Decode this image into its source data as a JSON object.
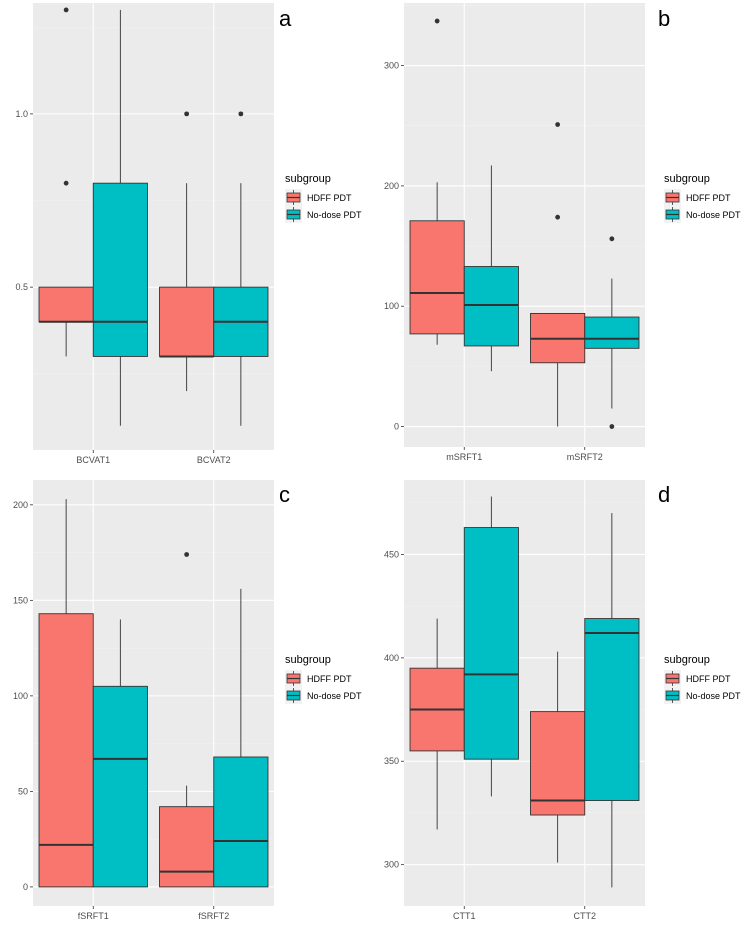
{
  "figure": {
    "description_free": true
  },
  "legend": {
    "title": "subgroup",
    "entries": [
      {
        "name": "HDFF PDT",
        "color": "#F8766D"
      },
      {
        "name": "No-dose PDT",
        "color": "#00BFC4"
      }
    ]
  },
  "chart_data": [
    {
      "type": "boxplot",
      "panel_letter": "a",
      "ylim": [
        0.03,
        1.32
      ],
      "yticks": [
        0.5,
        1.0
      ],
      "ytick_labels": [
        "0.5",
        "1.0"
      ],
      "categories": [
        "BCVAT1",
        "BCVAT2"
      ],
      "series": [
        {
          "name": "HDFF PDT",
          "boxes": [
            {
              "min": 0.3,
              "q1": 0.4,
              "median": 0.4,
              "q3": 0.5,
              "max": 0.5,
              "outliers": [
                0.8,
                1.3
              ]
            },
            {
              "min": 0.2,
              "q1": 0.3,
              "median": 0.3,
              "q3": 0.5,
              "max": 0.8,
              "outliers": [
                1.0
              ]
            }
          ]
        },
        {
          "name": "No-dose PDT",
          "boxes": [
            {
              "min": 0.1,
              "q1": 0.3,
              "median": 0.4,
              "q3": 0.8,
              "max": 1.3,
              "outliers": []
            },
            {
              "min": 0.1,
              "q1": 0.3,
              "median": 0.4,
              "q3": 0.5,
              "max": 0.8,
              "outliers": [
                1.0
              ]
            }
          ]
        }
      ]
    },
    {
      "type": "boxplot",
      "panel_letter": "b",
      "ylim": [
        -17,
        352
      ],
      "yticks": [
        0,
        100,
        200,
        300
      ],
      "ytick_labels": [
        "0",
        "100",
        "200",
        "300"
      ],
      "categories": [
        "mSRFT1",
        "mSRFT2"
      ],
      "series": [
        {
          "name": "HDFF PDT",
          "boxes": [
            {
              "min": 68,
              "q1": 77,
              "median": 111,
              "q3": 171,
              "max": 203,
              "outliers": [
                337
              ]
            },
            {
              "min": 0,
              "q1": 53,
              "median": 73,
              "q3": 94,
              "max": 94,
              "outliers": [
                174,
                251
              ]
            }
          ]
        },
        {
          "name": "No-dose PDT",
          "boxes": [
            {
              "min": 46,
              "q1": 67,
              "median": 101,
              "q3": 133,
              "max": 217,
              "outliers": []
            },
            {
              "min": 15,
              "q1": 65,
              "median": 73,
              "q3": 91,
              "max": 123,
              "outliers": [
                156,
                0
              ]
            }
          ]
        }
      ]
    },
    {
      "type": "boxplot",
      "panel_letter": "c",
      "ylim": [
        -10,
        213
      ],
      "yticks": [
        0,
        50,
        100,
        150,
        200
      ],
      "ytick_labels": [
        "0",
        "50",
        "100",
        "150",
        "200"
      ],
      "categories": [
        "fSRFT1",
        "fSRFT2"
      ],
      "series": [
        {
          "name": "HDFF PDT",
          "boxes": [
            {
              "min": 0,
              "q1": 0,
              "median": 22,
              "q3": 143,
              "max": 203,
              "outliers": []
            },
            {
              "min": 0,
              "q1": 0,
              "median": 8,
              "q3": 42,
              "max": 53,
              "outliers": [
                174
              ]
            }
          ]
        },
        {
          "name": "No-dose PDT",
          "boxes": [
            {
              "min": 0,
              "q1": 0,
              "median": 67,
              "q3": 105,
              "max": 140,
              "outliers": []
            },
            {
              "min": 0,
              "q1": 0,
              "median": 24,
              "q3": 68,
              "max": 156,
              "outliers": []
            }
          ]
        }
      ]
    },
    {
      "type": "boxplot",
      "panel_letter": "d",
      "ylim": [
        280,
        486
      ],
      "yticks": [
        300,
        350,
        400,
        450
      ],
      "ytick_labels": [
        "300",
        "350",
        "400",
        "450"
      ],
      "categories": [
        "CTT1",
        "CTT2"
      ],
      "series": [
        {
          "name": "HDFF PDT",
          "boxes": [
            {
              "min": 317,
              "q1": 355,
              "median": 375,
              "q3": 395,
              "max": 419,
              "outliers": []
            },
            {
              "min": 301,
              "q1": 324,
              "median": 331,
              "q3": 374,
              "max": 403,
              "outliers": []
            }
          ]
        },
        {
          "name": "No-dose PDT",
          "boxes": [
            {
              "min": 333,
              "q1": 351,
              "median": 392,
              "q3": 463,
              "max": 478,
              "outliers": []
            },
            {
              "min": 289,
              "q1": 331,
              "median": 412,
              "q3": 419,
              "max": 470,
              "outliers": []
            }
          ]
        }
      ]
    }
  ]
}
